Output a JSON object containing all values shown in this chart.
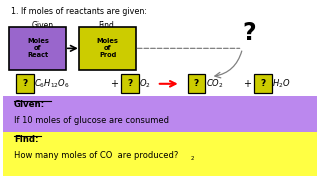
{
  "title": "1. If moles of reactants are given:",
  "given_label": "Given",
  "find_label": "Find",
  "box1_text": "Moles\nof\nReact",
  "box2_text": "Moles\nof\nProd",
  "box1_color": "#9966cc",
  "box2_color": "#cccc00",
  "question_box_color": "#cccc00",
  "given_bg": "#bb88ee",
  "find_bg": "#ffff44",
  "given_text1": "Given:",
  "given_text2": "If 10 moles of glucose are consumed",
  "find_text1": "Find:",
  "find_text2": "How many moles of CO  are produced?",
  "bg_color": "#ffffff"
}
